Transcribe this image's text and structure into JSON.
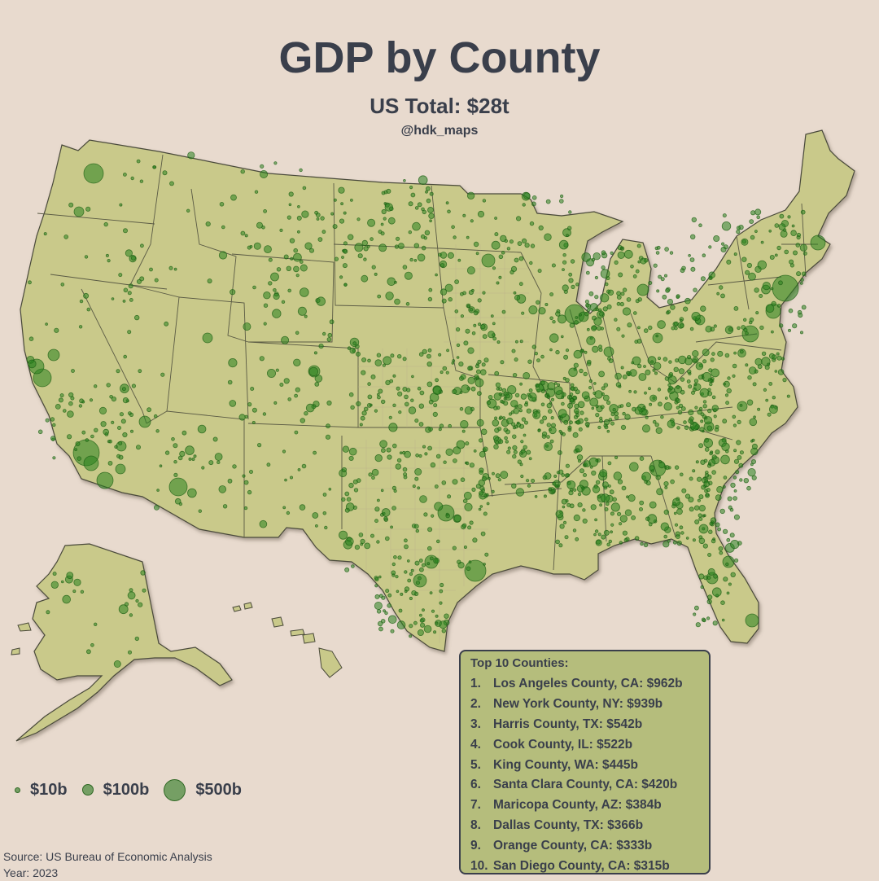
{
  "header": {
    "title": "GDP by County",
    "subtitle": "US Total: $28t",
    "handle": "@hdk_maps"
  },
  "legend": {
    "items": [
      {
        "label": "$10b",
        "value_billions": 10
      },
      {
        "label": "$100b",
        "value_billions": 100
      },
      {
        "label": "$500b",
        "value_billions": 500
      }
    ]
  },
  "top10": {
    "heading": "Top 10 Counties:",
    "rows": [
      {
        "rank": "1.",
        "text": "Los Angeles County, CA: $962b"
      },
      {
        "rank": "2.",
        "text": "New York County, NY: $939b"
      },
      {
        "rank": "3.",
        "text": "Harris County, TX: $542b"
      },
      {
        "rank": "4.",
        "text": "Cook County, IL: $522b"
      },
      {
        "rank": "5.",
        "text": "King County, WA: $445b"
      },
      {
        "rank": "6.",
        "text": "Santa Clara County, CA: $420b"
      },
      {
        "rank": "7.",
        "text": "Maricopa County, AZ: $384b"
      },
      {
        "rank": "8.",
        "text": "Dallas County, TX: $366b"
      },
      {
        "rank": "9.",
        "text": "Orange County, CA: $333b"
      },
      {
        "rank": "10.",
        "text": "San Diego County, CA: $315b"
      }
    ]
  },
  "footer": {
    "source": "Source: US Bureau of Economic Analysis",
    "year": "Year: 2023"
  },
  "colors": {
    "background": "#e8dace",
    "land": "#c9c98a",
    "bubble": "#2e8b2e",
    "panel": "#b5bd7c",
    "text": "#3a3f4b"
  }
}
